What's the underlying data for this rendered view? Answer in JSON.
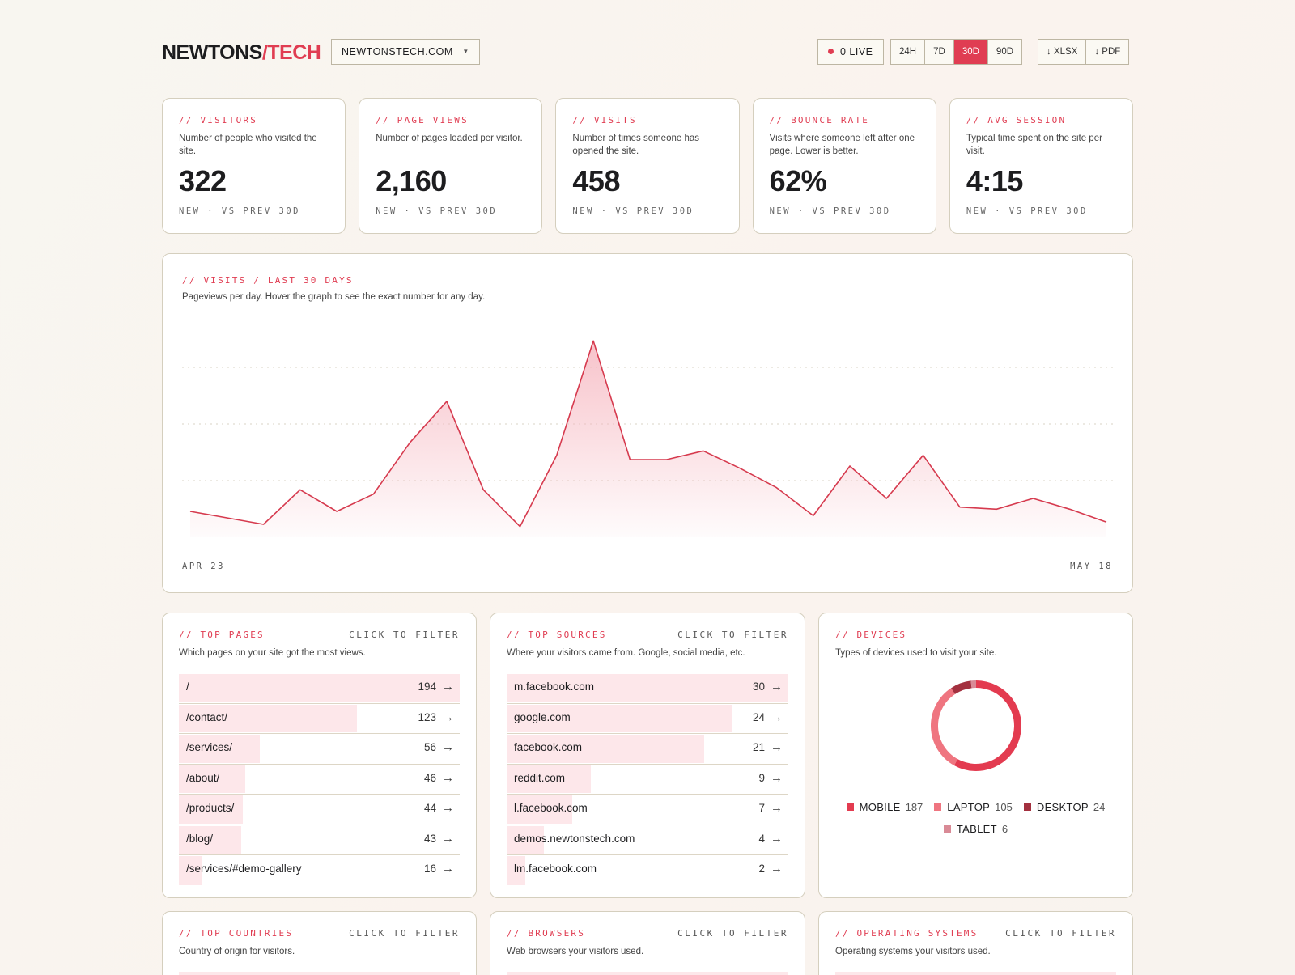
{
  "header": {
    "logo_main": "NEWTONS",
    "logo_accent": "/TECH",
    "site": "NEWTONSTECH.COM",
    "live": "0 LIVE",
    "ranges": [
      "24H",
      "7D",
      "30D",
      "90D"
    ],
    "active_range": "30D",
    "exports": [
      "↓ XLSX",
      "↓ PDF"
    ]
  },
  "stats": [
    {
      "kicker": "// VISITORS",
      "desc": "Number of people who visited the site.",
      "value": "322",
      "note": "NEW · VS PREV 30D"
    },
    {
      "kicker": "// PAGE VIEWS",
      "desc": "Number of pages loaded per visitor.",
      "value": "2,160",
      "note": "NEW · VS PREV 30D"
    },
    {
      "kicker": "// VISITS",
      "desc": "Number of times someone has opened the site.",
      "value": "458",
      "note": "NEW · VS PREV 30D"
    },
    {
      "kicker": "// BOUNCE RATE",
      "desc": "Visits where someone left after one page. Lower is better.",
      "value": "62%",
      "note": "NEW · VS PREV 30D"
    },
    {
      "kicker": "// AVG SESSION",
      "desc": "Typical time spent on the site per visit.",
      "value": "4:15",
      "note": "NEW · VS PREV 30D"
    }
  ],
  "visits_chart": {
    "kicker": "// VISITS / LAST 30 DAYS",
    "desc": "Pageviews per day. Hover the graph to see the exact number for any day.",
    "x_start": "APR 23",
    "x_end": "MAY 18",
    "colors": {
      "line": "#d63a4e",
      "fill": "#f6b8c1",
      "grid": "#d9d3c4"
    }
  },
  "chart_data": {
    "type": "area",
    "x_start": "APR 23",
    "x_end": "MAY 18",
    "values": [
      12,
      9,
      6,
      22,
      12,
      20,
      44,
      63,
      22,
      5,
      38,
      91,
      36,
      36,
      40,
      32,
      23,
      10,
      33,
      18,
      38,
      14,
      13,
      18,
      13,
      7
    ],
    "ylim": [
      0,
      105
    ],
    "grid": true
  },
  "top_pages": {
    "kicker": "// TOP PAGES",
    "filter": "CLICK TO FILTER",
    "desc": "Which pages on your site got the most views.",
    "rows": [
      {
        "label": "/",
        "count": "194",
        "share": 1.0
      },
      {
        "label": "/contact/",
        "count": "123",
        "share": 0.634
      },
      {
        "label": "/services/",
        "count": "56",
        "share": 0.289
      },
      {
        "label": "/about/",
        "count": "46",
        "share": 0.237
      },
      {
        "label": "/products/",
        "count": "44",
        "share": 0.227
      },
      {
        "label": "/blog/",
        "count": "43",
        "share": 0.222
      },
      {
        "label": "/services/#demo-gallery",
        "count": "16",
        "share": 0.082
      }
    ]
  },
  "top_sources": {
    "kicker": "// TOP SOURCES",
    "filter": "CLICK TO FILTER",
    "desc": "Where your visitors came from. Google, social media, etc.",
    "rows": [
      {
        "label": "m.facebook.com",
        "count": "30",
        "share": 1.0
      },
      {
        "label": "google.com",
        "count": "24",
        "share": 0.8
      },
      {
        "label": "facebook.com",
        "count": "21",
        "share": 0.7
      },
      {
        "label": "reddit.com",
        "count": "9",
        "share": 0.3
      },
      {
        "label": "l.facebook.com",
        "count": "7",
        "share": 0.233
      },
      {
        "label": "demos.newtonstech.com",
        "count": "4",
        "share": 0.133
      },
      {
        "label": "lm.facebook.com",
        "count": "2",
        "share": 0.067
      }
    ]
  },
  "devices": {
    "kicker": "// DEVICES",
    "desc": "Types of devices used to visit your site.",
    "items": [
      {
        "name": "MOBILE",
        "value": "187",
        "n": 187,
        "color": "#e33b50"
      },
      {
        "name": "LAPTOP",
        "value": "105",
        "n": 105,
        "color": "#ef7580"
      },
      {
        "name": "DESKTOP",
        "value": "24",
        "n": 24,
        "color": "#a3303f"
      },
      {
        "name": "TABLET",
        "value": "6",
        "n": 6,
        "color": "#d98a96"
      }
    ]
  },
  "top_countries": {
    "kicker": "// TOP COUNTRIES",
    "filter": "CLICK TO FILTER",
    "desc": "Country of origin for visitors."
  },
  "browsers": {
    "kicker": "// BROWSERS",
    "filter": "CLICK TO FILTER",
    "desc": "Web browsers your visitors used."
  },
  "operating_systems": {
    "kicker": "// OPERATING SYSTEMS",
    "filter": "CLICK TO FILTER",
    "desc": "Operating systems your visitors used."
  }
}
